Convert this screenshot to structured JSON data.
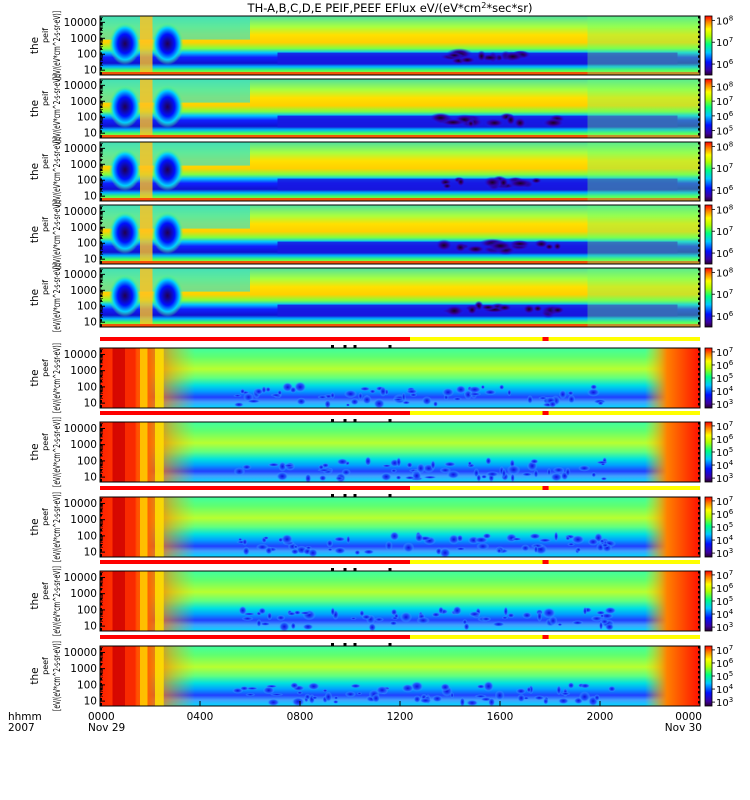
{
  "chart_data": {
    "type": "heatmap",
    "title": "TH-A,B,C,D,E PEIF,PEEF EFlux eV/(eV*cm",
    "title_sup": "2",
    "title_tail": "*sec*sr)",
    "x_axis": {
      "tick_labels": [
        "0000",
        "0400",
        "0800",
        "1200",
        "1600",
        "2000",
        "0000"
      ],
      "date_labels": [
        "Nov 29",
        "Nov 30"
      ],
      "row1_label": "hhmm",
      "row2_label": "2007",
      "range_hours": [
        0,
        24
      ]
    },
    "y_axis": {
      "scale": "log",
      "ylim_eV": [
        5,
        25000
      ],
      "tick_labels": [
        "10000",
        "1000",
        "100",
        "10"
      ]
    },
    "panels": [
      {
        "group": "ion",
        "probe": "A",
        "ylabel_main": "the",
        "ylabel_sup": "peif",
        "ylabel_units": "[eV/(eV*cm^2-s-sr-eV)]",
        "cbar_labels": [
          "8",
          "7",
          "6"
        ],
        "cbar_exponent_min": 5.5,
        "cbar_exponent_max": 8.2
      },
      {
        "group": "ion",
        "probe": "B",
        "ylabel_main": "the",
        "ylabel_sup": "peif",
        "ylabel_units": "[eV/(eV*cm^2-s-sr-eV)]",
        "cbar_labels": [
          "8",
          "7",
          "6",
          "5"
        ],
        "cbar_exponent_min": 4.5,
        "cbar_exponent_max": 8.5
      },
      {
        "group": "ion",
        "probe": "C",
        "ylabel_main": "the",
        "ylabel_sup": "peif",
        "ylabel_units": "[eV/(eV*cm^2-s-sr-eV)]",
        "cbar_labels": [
          "8",
          "7",
          "6"
        ],
        "cbar_exponent_min": 5.5,
        "cbar_exponent_max": 8.2
      },
      {
        "group": "ion",
        "probe": "D",
        "ylabel_main": "the",
        "ylabel_sup": "peif",
        "ylabel_units": "[eV/(eV*cm^2-s-sr-eV)]",
        "cbar_labels": [
          "8",
          "7",
          "6"
        ],
        "cbar_exponent_min": 5.5,
        "cbar_exponent_max": 8.2
      },
      {
        "group": "ion",
        "probe": "E",
        "ylabel_main": "the",
        "ylabel_sup": "peif",
        "ylabel_units": "[eV/(eV*cm^2-s-sr-eV)]",
        "cbar_labels": [
          "8",
          "7",
          "6"
        ],
        "cbar_exponent_min": 5.5,
        "cbar_exponent_max": 8.2
      },
      {
        "group": "electron",
        "probe": "A",
        "ylabel_main": "the",
        "ylabel_sup": "peef",
        "ylabel_units": "[eV/(eV*cm^2-s-sr-eV)]",
        "cbar_labels": [
          "7",
          "6",
          "5",
          "4",
          "3"
        ],
        "cbar_exponent_min": 2.7,
        "cbar_exponent_max": 7.3
      },
      {
        "group": "electron",
        "probe": "B",
        "ylabel_main": "the",
        "ylabel_sup": "peef",
        "ylabel_units": "[eV/(eV*cm^2-s-sr-eV)]",
        "cbar_labels": [
          "7",
          "6",
          "5",
          "4",
          "3"
        ],
        "cbar_exponent_min": 2.7,
        "cbar_exponent_max": 7.3
      },
      {
        "group": "electron",
        "probe": "C",
        "ylabel_main": "the",
        "ylabel_sup": "peef",
        "ylabel_units": "[eV/(eV*cm^2-s-sr-eV)]",
        "cbar_labels": [
          "7",
          "6",
          "5",
          "4",
          "3"
        ],
        "cbar_exponent_min": 2.7,
        "cbar_exponent_max": 7.3
      },
      {
        "group": "electron",
        "probe": "D",
        "ylabel_main": "the",
        "ylabel_sup": "peef",
        "ylabel_units": "[eV/(eV*cm^2-s-sr-eV)]",
        "cbar_labels": [
          "7",
          "6",
          "5",
          "4",
          "3"
        ],
        "cbar_exponent_min": 2.7,
        "cbar_exponent_max": 7.3
      },
      {
        "group": "electron",
        "probe": "E",
        "ylabel_main": "the",
        "ylabel_sup": "peef",
        "ylabel_units": "[eV/(eV*cm^2-s-sr-eV)]",
        "cbar_labels": [
          "7",
          "6",
          "5",
          "4",
          "3"
        ],
        "cbar_exponent_min": 2.7,
        "cbar_exponent_max": 7.3
      }
    ],
    "mode_bar": {
      "segments": [
        {
          "start_hour": 0.0,
          "end_hour": 12.4,
          "state": "fast-survey",
          "color": "#ff0000"
        },
        {
          "start_hour": 12.4,
          "end_hour": 17.7,
          "state": "slow-survey",
          "color": "#ffff00"
        },
        {
          "start_hour": 17.7,
          "end_hour": 17.95,
          "state": "fast-survey",
          "color": "#ff0000"
        },
        {
          "start_hour": 17.95,
          "end_hour": 24.0,
          "state": "slow-survey",
          "color": "#ffff00"
        }
      ],
      "burst_hours": [
        9.3,
        9.8,
        10.2,
        11.6
      ]
    },
    "colormap": "rainbow (violet-blue-cyan-green-yellow-red)"
  }
}
